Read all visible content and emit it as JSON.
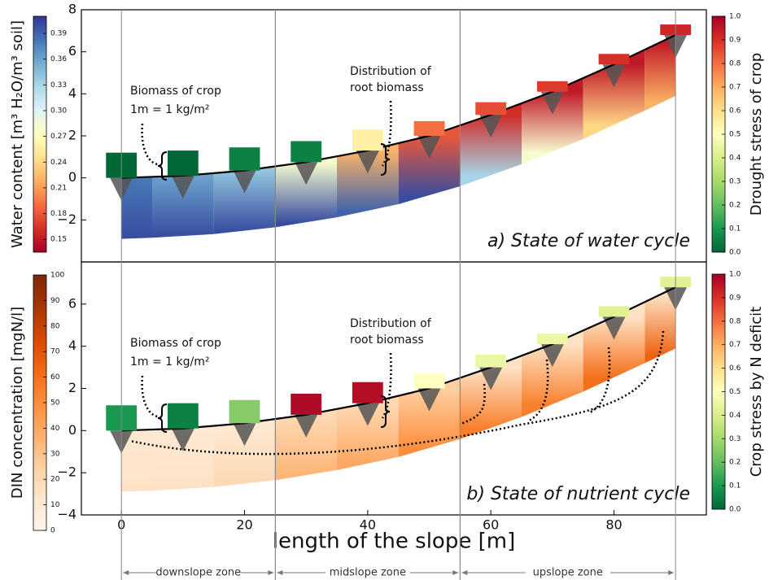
{
  "chart_data": [
    {
      "type": "slope-profile",
      "title": "a) State of water cycle",
      "xlim": [
        -6.5,
        95
      ],
      "ylim": [
        -4,
        8
      ],
      "yticks": [
        {
          "value": -2,
          "label": "−2"
        },
        0,
        2,
        4,
        6,
        8
      ],
      "positions": [
        0,
        10,
        20,
        30,
        40,
        50,
        60,
        70,
        80,
        90
      ],
      "surface": [
        0,
        0.1,
        0.35,
        0.75,
        1.3,
        2.0,
        3.0,
        4.1,
        5.4,
        6.8
      ],
      "soil_depth": 2.9,
      "biomass": [
        1.2,
        1.2,
        1.1,
        1.0,
        1.0,
        0.7,
        0.6,
        0.5,
        0.5,
        0.5
      ],
      "crop_stress": [
        0.0,
        0.0,
        0.05,
        0.05,
        0.55,
        0.8,
        0.85,
        0.88,
        0.9,
        0.92
      ],
      "soil_top": [
        0.38,
        0.36,
        0.34,
        0.28,
        0.22,
        0.18,
        0.16,
        0.15,
        0.15,
        0.15
      ],
      "soil_bottom": [
        0.4,
        0.4,
        0.4,
        0.4,
        0.39,
        0.4,
        0.33,
        0.28,
        0.24,
        0.22
      ],
      "soil_colorbar": {
        "label": "Water content [m³ H₂O/m³ soil]",
        "lim": [
          0.135,
          0.41
        ],
        "ticks": [
          0.15,
          0.18,
          0.21,
          0.24,
          0.27,
          {
            "value": 0.3,
            "label": "0.30"
          },
          0.33,
          0.36,
          0.39
        ],
        "colors": [
          "#a50026",
          "#d73027",
          "#f46d43",
          "#fdae61",
          "#fee090",
          "#ffffbf",
          "#e0f3f8",
          "#abd9e9",
          "#74add1",
          "#4575b4",
          "#313695"
        ]
      },
      "stress_colorbar": {
        "label": "Drought stress of crop",
        "lim": [
          0,
          1
        ],
        "ticks": [
          {
            "value": 0,
            "label": "0.0"
          },
          0.1,
          0.2,
          0.3,
          0.4,
          0.5,
          0.6,
          0.7,
          0.8,
          0.9,
          {
            "value": 1,
            "label": "1.0"
          }
        ],
        "colors": [
          "#006837",
          "#1a9850",
          "#66bd63",
          "#a6d96a",
          "#d9ef8b",
          "#ffffbf",
          "#fee08b",
          "#fdae61",
          "#f46d43",
          "#d73027",
          "#a50026"
        ]
      },
      "annotations": [
        "Biomass of crop",
        "1m = 1 kg/m²",
        "Distribution of",
        "root biomass"
      ]
    },
    {
      "type": "slope-profile",
      "title": "b) State of nutrient cycle",
      "xlim": [
        -6.5,
        95
      ],
      "ylim": [
        -4,
        8
      ],
      "yticks": [
        {
          "value": -4,
          "label": "−4"
        },
        {
          "value": -2,
          "label": "−2"
        },
        0,
        2,
        4,
        6
      ],
      "xticks": [
        0,
        20,
        40,
        60,
        80
      ],
      "xlabel": "length of the slope [m]",
      "zones": [
        {
          "label": "downslope zone",
          "start": 0,
          "end": 25
        },
        {
          "label": "midslope zone",
          "start": 25,
          "end": 55
        },
        {
          "label": "upslope zone",
          "start": 55,
          "end": 90
        }
      ],
      "positions": [
        0,
        10,
        20,
        30,
        40,
        50,
        60,
        70,
        80,
        90
      ],
      "surface": [
        0,
        0.1,
        0.35,
        0.75,
        1.3,
        2.0,
        3.0,
        4.1,
        5.4,
        6.8
      ],
      "soil_depth": 2.9,
      "biomass": [
        1.2,
        1.2,
        1.1,
        1.0,
        1.0,
        0.7,
        0.6,
        0.5,
        0.5,
        0.5
      ],
      "crop_stress": [
        0.1,
        0.05,
        0.25,
        0.98,
        0.97,
        0.5,
        0.45,
        0.45,
        0.42,
        0.42
      ],
      "soil_top": [
        10,
        10,
        10,
        20,
        20,
        25,
        15,
        15,
        15,
        15
      ],
      "soil_bottom": [
        15,
        15,
        20,
        35,
        40,
        50,
        55,
        55,
        60,
        65
      ],
      "soil_colorbar": {
        "label": "DIN concentration [mgN/l]",
        "lim": [
          0,
          100
        ],
        "ticks": [
          0,
          10,
          20,
          30,
          40,
          50,
          60,
          70,
          80,
          90,
          100
        ],
        "colors": [
          "#fff5eb",
          "#fee6ce",
          "#fdd0a2",
          "#fdae6b",
          "#fd8d3c",
          "#f16913",
          "#d94801",
          "#a63603",
          "#7f2704"
        ]
      },
      "stress_colorbar": {
        "label": "Crop stress by N deficit",
        "lim": [
          0,
          1
        ],
        "ticks": [
          {
            "value": 0,
            "label": "0.0"
          },
          0.1,
          0.2,
          0.3,
          0.4,
          0.5,
          0.6,
          0.7,
          0.8,
          0.9,
          {
            "value": 1,
            "label": "1.0"
          }
        ],
        "colors": [
          "#006837",
          "#1a9850",
          "#66bd63",
          "#a6d96a",
          "#d9ef8b",
          "#ffffbf",
          "#fee08b",
          "#fdae61",
          "#f46d43",
          "#d73027",
          "#a50026"
        ]
      },
      "annotations": [
        "Biomass of crop",
        "1m = 1 kg/m²",
        "Distribution of",
        "root biomass"
      ]
    }
  ]
}
